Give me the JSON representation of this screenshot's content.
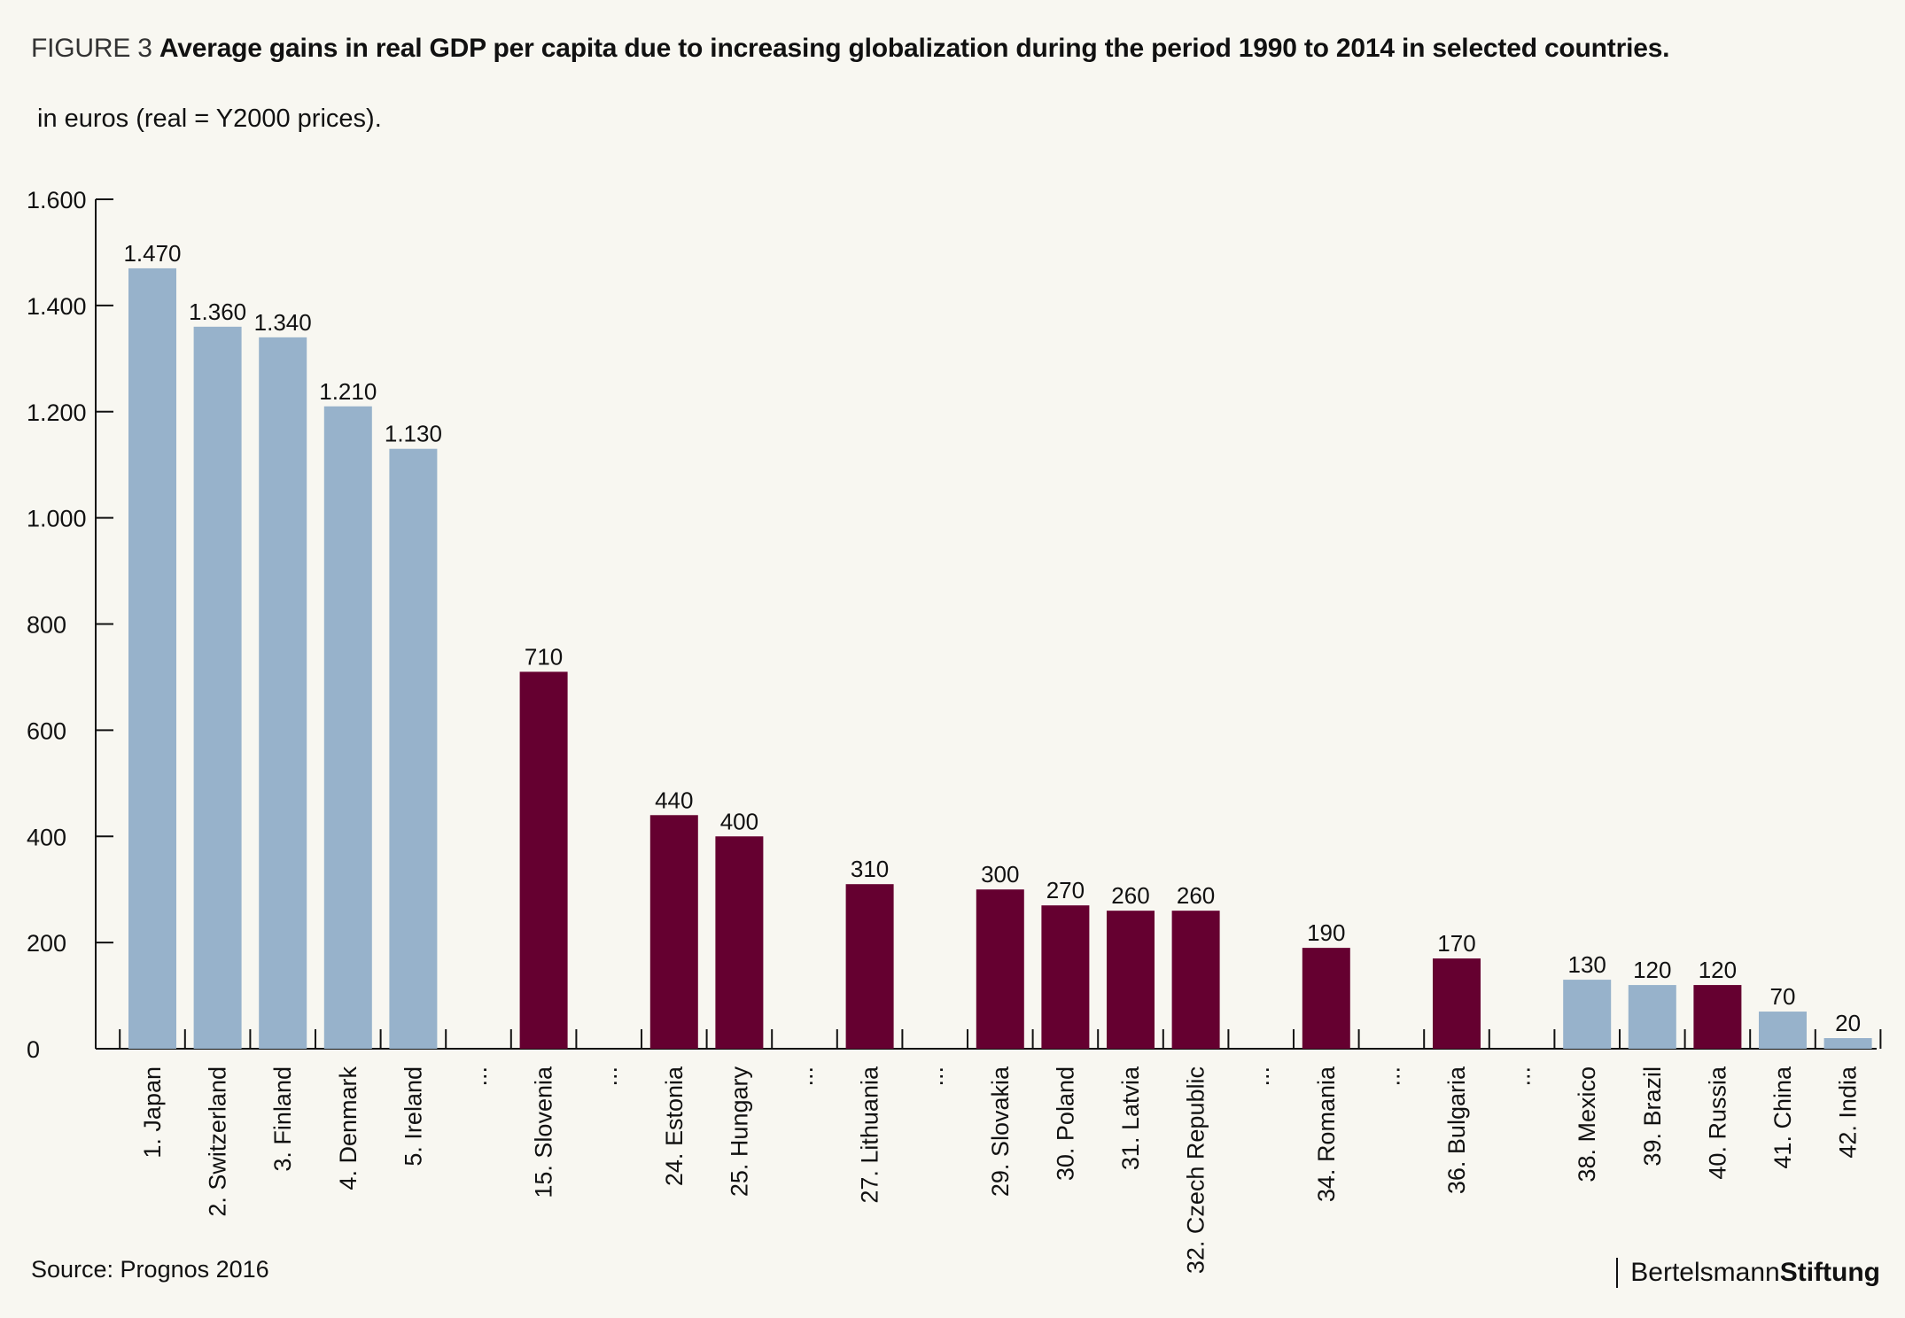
{
  "header": {
    "figure_label": "FIGURE 3",
    "title": "Average gains in real GDP per capita due to increasing globalization during the period 1990 to 2014 in selected countries.",
    "subtitle": "in euros (real = Y2000 prices)."
  },
  "footer": {
    "source": "Source: Prognos 2016",
    "logo_part1": "Bertelsmann",
    "logo_part2": "Stiftung"
  },
  "colors": {
    "background": "#f8f7f1",
    "light_bar": "#97b2cb",
    "dark_bar": "#650030",
    "axis": "#111111"
  },
  "chart_data": {
    "type": "bar",
    "title": "Average gains in real GDP per capita due to increasing globalization during the period 1990 to 2014 in selected countries.",
    "ylabel": "",
    "xlabel": "",
    "ylim": [
      0,
      1600
    ],
    "yticks": [
      0,
      200,
      400,
      600,
      800,
      1000,
      1200,
      1400,
      1600
    ],
    "ytick_labels": [
      "0",
      "200",
      "400",
      "600",
      "800",
      "1.000",
      "1.200",
      "1.400",
      "1.600"
    ],
    "grid": false,
    "legend": "none",
    "categories": [
      "1. Japan",
      "2. Switzerland",
      "3. Finland",
      "4. Denmark",
      "5. Ireland",
      "...",
      "15. Slovenia",
      "...",
      "24. Estonia",
      "25. Hungary",
      "...",
      "27. Lithuania",
      "...",
      "29. Slovakia",
      "30. Poland",
      "31. Latvia",
      "32. Czech Republic",
      "...",
      "34. Romania",
      "...",
      "36. Bulgaria",
      "...",
      "38. Mexico",
      "39. Brazil",
      "40. Russia",
      "41. China",
      "42. India"
    ],
    "values": [
      1470,
      1360,
      1340,
      1210,
      1130,
      null,
      710,
      null,
      440,
      400,
      null,
      310,
      null,
      300,
      270,
      260,
      260,
      null,
      190,
      null,
      170,
      null,
      130,
      120,
      120,
      70,
      20
    ],
    "value_labels": [
      "1.470",
      "1.360",
      "1.340",
      "1.210",
      "1.130",
      "",
      "710",
      "",
      "440",
      "400",
      "",
      "310",
      "",
      "300",
      "270",
      "260",
      "260",
      "",
      "190",
      "",
      "170",
      "",
      "130",
      "120",
      "120",
      "70",
      "20"
    ],
    "bar_colors": [
      "light",
      "light",
      "light",
      "light",
      "light",
      "",
      "dark",
      "",
      "dark",
      "dark",
      "",
      "dark",
      "",
      "dark",
      "dark",
      "dark",
      "dark",
      "",
      "dark",
      "",
      "dark",
      "",
      "light",
      "light",
      "dark",
      "light",
      "light"
    ]
  }
}
